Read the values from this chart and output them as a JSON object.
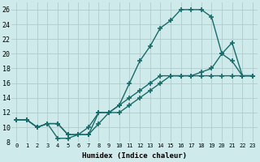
{
  "xlabel": "Humidex (Indice chaleur)",
  "bg_color": "#ceeaea",
  "grid_color": "#b0cccc",
  "line_color": "#1a6b6b",
  "xlim": [
    -0.5,
    23.5
  ],
  "ylim": [
    8,
    27
  ],
  "xticks": [
    0,
    1,
    2,
    3,
    4,
    5,
    6,
    7,
    8,
    9,
    10,
    11,
    12,
    13,
    14,
    15,
    16,
    17,
    18,
    19,
    20,
    21,
    22,
    23
  ],
  "yticks": [
    8,
    10,
    12,
    14,
    16,
    18,
    20,
    22,
    24,
    26
  ],
  "line1_x": [
    0,
    1,
    2,
    3,
    4,
    5,
    6,
    7,
    8,
    9,
    10,
    11,
    12,
    13,
    14,
    15,
    16,
    17,
    18,
    19,
    20,
    21,
    22,
    23
  ],
  "line1_y": [
    11,
    11,
    10,
    10.5,
    8.5,
    8.5,
    9,
    9,
    10.5,
    12,
    13,
    16,
    19,
    21,
    23.5,
    24.5,
    26,
    26,
    26,
    25,
    20,
    19,
    17,
    17
  ],
  "line2_x": [
    0,
    1,
    2,
    3,
    4,
    5,
    6,
    7,
    8,
    9,
    10,
    11,
    12,
    13,
    14,
    15,
    16,
    17,
    18,
    19,
    20,
    21,
    22,
    23
  ],
  "line2_y": [
    11,
    11,
    10,
    10.5,
    10.5,
    9,
    9,
    10,
    12,
    12,
    13,
    14,
    15,
    16,
    17,
    17,
    17,
    17,
    17.5,
    18,
    20,
    21.5,
    17,
    17
  ],
  "line3_x": [
    0,
    1,
    2,
    3,
    4,
    5,
    6,
    7,
    8,
    9,
    10,
    11,
    12,
    13,
    14,
    15,
    16,
    17,
    18,
    19,
    20,
    21,
    22,
    23
  ],
  "line3_y": [
    11,
    11,
    10,
    10.5,
    10.5,
    9,
    9,
    9,
    12,
    12,
    12,
    13,
    14,
    15,
    16,
    17,
    17,
    17,
    17,
    17,
    17,
    17,
    17,
    17
  ],
  "marker": "+",
  "markersize": 4,
  "markeredgewidth": 1.2,
  "linewidth": 1.0
}
